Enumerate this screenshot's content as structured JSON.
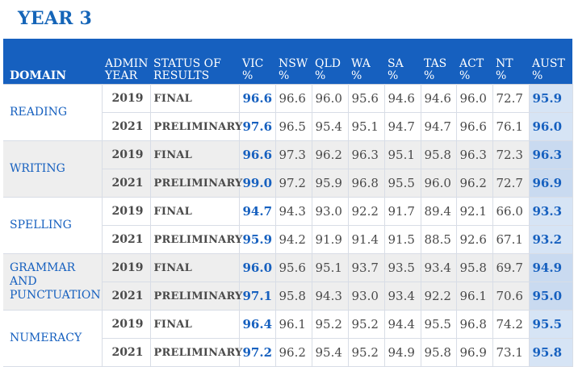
{
  "title": "YEAR 3",
  "headers": {
    "domain": "DOMAIN",
    "admin_year": [
      "ADMIN",
      "YEAR"
    ],
    "status": [
      "STATUS OF",
      "RESULTS"
    ],
    "cols": [
      [
        "VIC",
        "%"
      ],
      [
        "NSW",
        "%"
      ],
      [
        "QLD",
        "%"
      ],
      [
        "WA",
        "%"
      ],
      [
        "SA",
        "%"
      ],
      [
        "TAS",
        "%"
      ],
      [
        "ACT",
        "%"
      ],
      [
        "NT",
        "%"
      ],
      [
        "AUST",
        "%"
      ]
    ]
  },
  "domains": [
    {
      "name": [
        "READING"
      ],
      "rows": [
        {
          "year": "2019",
          "status": "FINAL",
          "values": [
            "96.6",
            "96.6",
            "96.0",
            "95.6",
            "94.6",
            "94.6",
            "96.0",
            "72.7",
            "95.9"
          ]
        },
        {
          "year": "2021",
          "status": "PRELIMINARY",
          "values": [
            "97.6",
            "96.5",
            "95.4",
            "95.1",
            "94.7",
            "94.7",
            "96.6",
            "76.1",
            "96.0"
          ]
        }
      ]
    },
    {
      "name": [
        "WRITING"
      ],
      "rows": [
        {
          "year": "2019",
          "status": "FINAL",
          "values": [
            "96.6",
            "97.3",
            "96.2",
            "96.3",
            "95.1",
            "95.8",
            "96.3",
            "72.3",
            "96.3"
          ]
        },
        {
          "year": "2021",
          "status": "PRELIMINARY",
          "values": [
            "99.0",
            "97.2",
            "95.9",
            "96.8",
            "95.5",
            "96.0",
            "96.2",
            "72.7",
            "96.9"
          ]
        }
      ]
    },
    {
      "name": [
        "SPELLING"
      ],
      "rows": [
        {
          "year": "2019",
          "status": "FINAL",
          "values": [
            "94.7",
            "94.3",
            "93.0",
            "92.2",
            "91.7",
            "89.4",
            "92.1",
            "66.0",
            "93.3"
          ]
        },
        {
          "year": "2021",
          "status": "PRELIMINARY",
          "values": [
            "95.9",
            "94.2",
            "91.9",
            "91.4",
            "91.5",
            "88.5",
            "92.6",
            "67.1",
            "93.2"
          ]
        }
      ]
    },
    {
      "name": [
        "GRAMMAR",
        "AND",
        "PUNCTUATION"
      ],
      "rows": [
        {
          "year": "2019",
          "status": "FINAL",
          "values": [
            "96.0",
            "95.6",
            "95.1",
            "93.7",
            "93.5",
            "93.4",
            "95.8",
            "69.7",
            "94.9"
          ]
        },
        {
          "year": "2021",
          "status": "PRELIMINARY",
          "values": [
            "97.1",
            "95.8",
            "94.3",
            "93.0",
            "93.4",
            "92.2",
            "96.1",
            "70.6",
            "95.0"
          ]
        }
      ]
    },
    {
      "name": [
        "NUMERACY"
      ],
      "rows": [
        {
          "year": "2019",
          "status": "FINAL",
          "values": [
            "96.4",
            "96.1",
            "95.2",
            "95.2",
            "94.4",
            "95.5",
            "96.8",
            "74.2",
            "95.5"
          ]
        },
        {
          "year": "2021",
          "status": "PRELIMINARY",
          "values": [
            "97.2",
            "96.2",
            "95.4",
            "95.2",
            "94.9",
            "95.8",
            "96.9",
            "73.1",
            "95.8"
          ]
        }
      ]
    }
  ],
  "colors": {
    "accent": "#1660bf",
    "aust_fill": "#d6e4f5",
    "shade": "#eeeeee"
  }
}
